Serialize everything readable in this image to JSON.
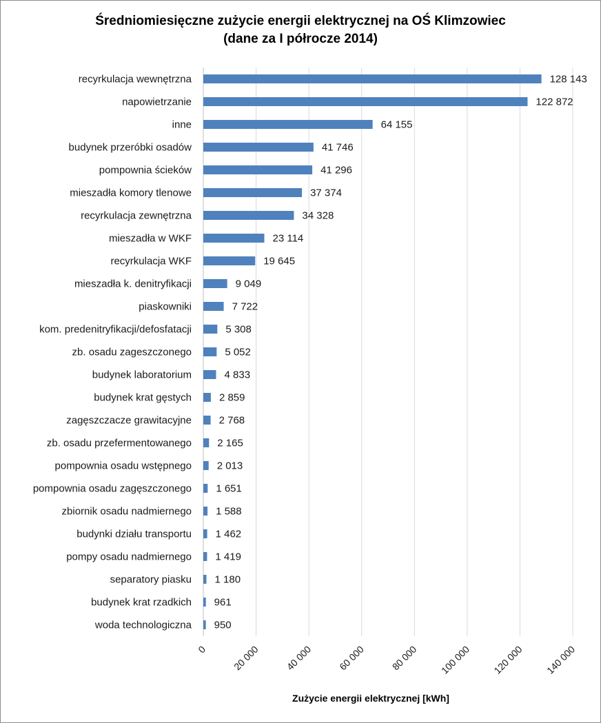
{
  "chart_data": {
    "type": "bar",
    "orientation": "horizontal",
    "title": "Średniomiesięczne zużycie energii elektrycznej na OŚ Klimzowiec",
    "subtitle": "(dane za I półrocze 2014)",
    "xlabel": "Zużycie energii elektrycznej [kWh]",
    "ylabel": "",
    "xlim": [
      0,
      140000
    ],
    "x_ticks": [
      0,
      20000,
      40000,
      60000,
      80000,
      100000,
      120000,
      140000
    ],
    "x_tick_labels": [
      "0",
      "20 000",
      "40 000",
      "60 000",
      "80 000",
      "100 000",
      "120 000",
      "140 000"
    ],
    "grid": "vertical",
    "legend": "none",
    "bar_color": "#4f81bd",
    "categories": [
      "recyrkulacja wewnętrzna",
      "napowietrzanie",
      "inne",
      "budynek przeróbki osadów",
      "pompownia ścieków",
      "mieszadła komory tlenowe",
      "recyrkulacja zewnętrzna",
      "mieszadła w WKF",
      "recyrkulacja WKF",
      "mieszadła k. denitryfikacji",
      "piaskowniki",
      "kom. predenitryfikacji/defosfatacji",
      "zb. osadu zageszczonego",
      "budynek laboratorium",
      "budynek krat gęstych",
      "zagęszczacze grawitacyjne",
      "zb. osadu przefermentowanego",
      "pompownia osadu wstępnego",
      "pompownia osadu zagęszczonego",
      "zbiornik osadu nadmiernego",
      "budynki działu transportu",
      "pompy osadu nadmiernego",
      "separatory piasku",
      "budynek krat rzadkich",
      "woda technologiczna"
    ],
    "values": [
      128143,
      122872,
      64155,
      41746,
      41296,
      37374,
      34328,
      23114,
      19645,
      9049,
      7722,
      5308,
      5052,
      4833,
      2859,
      2768,
      2165,
      2013,
      1651,
      1588,
      1462,
      1419,
      1180,
      961,
      950
    ],
    "value_labels": [
      "128 143",
      "122 872",
      "64 155",
      "41 746",
      "41 296",
      "37 374",
      "34 328",
      "23 114",
      "19 645",
      "9 049",
      "7 722",
      "5 308",
      "5 052",
      "4 833",
      "2 859",
      "2 768",
      "2 165",
      "2 013",
      "1 651",
      "1 588",
      "1 462",
      "1 419",
      "1 180",
      "961",
      "950"
    ]
  }
}
